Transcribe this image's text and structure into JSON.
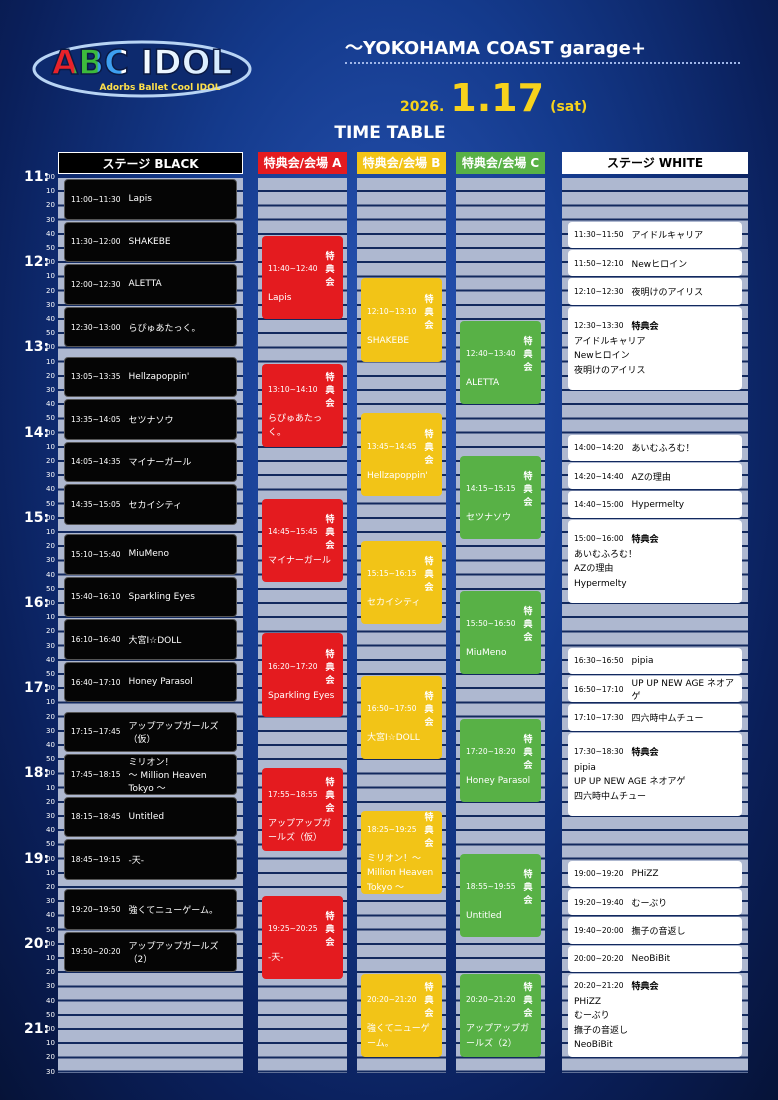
{
  "logo": {
    "title": "ABC IDOL",
    "subtitle": "Adorbs Ballet Cool IDOL"
  },
  "header": {
    "venue": "〜YOKOHAMA COAST garage+",
    "year": "2026.",
    "date": "1.17",
    "weekday": "(sat)",
    "section": "TIME TABLE"
  },
  "time_axis": {
    "hours": [
      "11:",
      "12:",
      "13:",
      "14:",
      "15:",
      "16:",
      "17:",
      "18:",
      "19:",
      "20:",
      "21:"
    ],
    "minutes": [
      "00",
      "10",
      "20",
      "30",
      "40",
      "50"
    ]
  },
  "columns": [
    {
      "header": "ステージ BLACK",
      "events": [
        {
          "time": "11:00~11:30",
          "names": [
            "Lapis"
          ]
        },
        {
          "time": "11:30~12:00",
          "names": [
            "SHAKEBE"
          ]
        },
        {
          "time": "12:00~12:30",
          "names": [
            "ALETTA"
          ]
        },
        {
          "time": "12:30~13:00",
          "names": [
            "らぴゅあたっく。"
          ]
        },
        {
          "time": "13:05~13:35",
          "names": [
            "Hellzapoppin'"
          ]
        },
        {
          "time": "13:35~14:05",
          "names": [
            "セツナソウ"
          ]
        },
        {
          "time": "14:05~14:35",
          "names": [
            "マイナーガール"
          ]
        },
        {
          "time": "14:35~15:05",
          "names": [
            "セカイシティ"
          ]
        },
        {
          "time": "15:10~15:40",
          "names": [
            "MiuMeno"
          ]
        },
        {
          "time": "15:40~16:10",
          "names": [
            "Sparkling Eyes"
          ]
        },
        {
          "time": "16:10~16:40",
          "names": [
            "大宮I☆DOLL"
          ]
        },
        {
          "time": "16:40~17:10",
          "names": [
            "Honey Parasol"
          ]
        },
        {
          "time": "17:15~17:45",
          "names": [
            "アップアップガールズ（仮）"
          ]
        },
        {
          "time": "17:45~18:15",
          "names": [
            "ミリオン！",
            "〜 Million Heaven Tokyo 〜"
          ]
        },
        {
          "time": "18:15~18:45",
          "names": [
            "Untitled"
          ]
        },
        {
          "time": "18:45~19:15",
          "names": [
            "-天-"
          ]
        },
        {
          "time": "19:20~19:50",
          "names": [
            "強くてニューゲーム。"
          ]
        },
        {
          "time": "19:50~20:20",
          "names": [
            "アップアップガールズ（2）"
          ]
        }
      ]
    },
    {
      "header": "特典会/会場 A",
      "events": [
        {
          "time": "11:40~12:40",
          "label": "特典会",
          "names": [
            "Lapis"
          ]
        },
        {
          "time": "13:10~14:10",
          "label": "特典会",
          "names": [
            "らぴゅあたっく。"
          ]
        },
        {
          "time": "14:45~15:45",
          "label": "特典会",
          "names": [
            "マイナーガール"
          ]
        },
        {
          "time": "16:20~17:20",
          "label": "特典会",
          "names": [
            "Sparkling Eyes"
          ]
        },
        {
          "time": "17:55~18:55",
          "label": "特典会",
          "names": [
            "アップアップガールズ（仮）"
          ]
        },
        {
          "time": "19:25~20:25",
          "label": "特典会",
          "names": [
            "-天-"
          ]
        }
      ]
    },
    {
      "header": "特典会/会場 B",
      "events": [
        {
          "time": "12:10~13:10",
          "label": "特典会",
          "names": [
            "SHAKEBE"
          ]
        },
        {
          "time": "13:45~14:45",
          "label": "特典会",
          "names": [
            "Hellzapoppin'"
          ]
        },
        {
          "time": "15:15~16:15",
          "label": "特典会",
          "names": [
            "セカイシティ"
          ]
        },
        {
          "time": "16:50~17:50",
          "label": "特典会",
          "names": [
            "大宮I☆DOLL"
          ]
        },
        {
          "time": "18:25~19:25",
          "label": "特典会",
          "names": [
            "ミリオン！〜 Million Heaven Tokyo 〜"
          ]
        },
        {
          "time": "20:20~21:20",
          "label": "特典会",
          "names": [
            "強くてニューゲーム。"
          ]
        }
      ]
    },
    {
      "header": "特典会/会場 C",
      "events": [
        {
          "time": "12:40~13:40",
          "label": "特典会",
          "names": [
            "ALETTA"
          ]
        },
        {
          "time": "14:15~15:15",
          "label": "特典会",
          "names": [
            "セツナソウ"
          ]
        },
        {
          "time": "15:50~16:50",
          "label": "特典会",
          "names": [
            "MiuMeno"
          ]
        },
        {
          "time": "17:20~18:20",
          "label": "特典会",
          "names": [
            "Honey Parasol"
          ]
        },
        {
          "time": "18:55~19:55",
          "label": "特典会",
          "names": [
            "Untitled"
          ]
        },
        {
          "time": "20:20~21:20",
          "label": "特典会",
          "names": [
            "アップアップガールズ（2）"
          ]
        }
      ]
    },
    {
      "header": "ステージ WHITE",
      "events": [
        {
          "time": "11:30~11:50",
          "names": [
            "アイドルキャリア"
          ]
        },
        {
          "time": "11:50~12:10",
          "names": [
            "Newヒロイン"
          ]
        },
        {
          "time": "12:10~12:30",
          "names": [
            "夜明けのアイリス"
          ]
        },
        {
          "time": "12:30~13:30",
          "label": "特典会",
          "names": [
            "アイドルキャリア",
            "Newヒロイン",
            "夜明けのアイリス"
          ]
        },
        {
          "time": "14:00~14:20",
          "names": [
            "あいむふろむ！"
          ]
        },
        {
          "time": "14:20~14:40",
          "names": [
            "AZの理由"
          ]
        },
        {
          "time": "14:40~15:00",
          "names": [
            "Hypermelty"
          ]
        },
        {
          "time": "15:00~16:00",
          "label": "特典会",
          "names": [
            "あいむふろむ！",
            "AZの理由",
            "Hypermelty"
          ]
        },
        {
          "time": "16:30~16:50",
          "names": [
            "pipia"
          ]
        },
        {
          "time": "16:50~17:10",
          "names": [
            "UP UP NEW AGE ネオアゲ"
          ]
        },
        {
          "time": "17:10~17:30",
          "names": [
            "四六時中ムチュー"
          ]
        },
        {
          "time": "17:30~18:30",
          "label": "特典会",
          "names": [
            "pipia",
            "UP UP NEW AGE ネオアゲ",
            "四六時中ムチュー"
          ]
        },
        {
          "time": "19:00~19:20",
          "names": [
            "PHiZZ"
          ]
        },
        {
          "time": "19:20~19:40",
          "names": [
            "むーぶり"
          ]
        },
        {
          "time": "19:40~20:00",
          "names": [
            "撫子の音返し"
          ]
        },
        {
          "time": "20:00~20:20",
          "names": [
            "NeoBiBit"
          ]
        },
        {
          "time": "20:20~21:20",
          "label": "特典会",
          "names": [
            "PHiZZ",
            "むーぶり",
            "撫子の音返し",
            "NeoBiBit"
          ]
        }
      ]
    }
  ]
}
